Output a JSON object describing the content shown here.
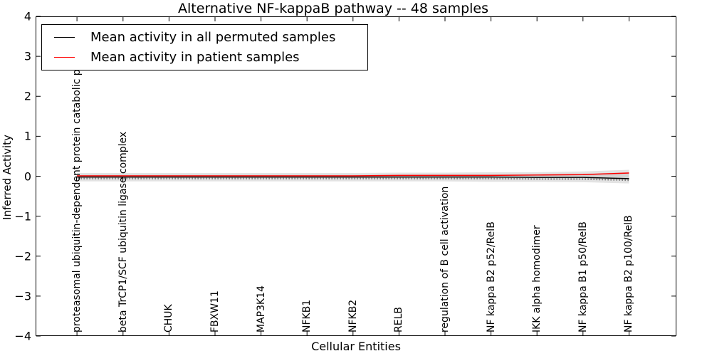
{
  "title": "Alternative NF-kappaB pathway -- 48 samples",
  "axes": {
    "xlabel": "Cellular Entities",
    "ylabel": "Inferred Activity",
    "ytick_labels": [
      "4",
      "3",
      "2",
      "1",
      "0",
      "−1",
      "−2",
      "−3",
      "−4"
    ]
  },
  "legend": {
    "items": [
      {
        "label": "Mean activity in all permuted samples",
        "color": "#000000"
      },
      {
        "label": "Mean activity in patient samples",
        "color": "#ff0000"
      }
    ]
  },
  "chart_data": {
    "type": "line",
    "title": "Alternative NF-kappaB pathway -- 48 samples",
    "xlabel": "Cellular Entities",
    "ylabel": "Inferred Activity",
    "categories": [
      "proteasomal ubiquitin-dependent protein catabolic pr",
      "beta TrCP1/SCF ubiquitin ligase complex",
      "CHUK",
      "FBXW11",
      "MAP3K14",
      "NFKB1",
      "NFKB2",
      "RELB",
      "regulation of B cell activation",
      "NF kappa B2 p52/RelB",
      "IKK alpha homodimer",
      "NF kappa B1 p50/RelB",
      "NF kappa B2 p100/RelB"
    ],
    "series": [
      {
        "name": "Mean activity in all permuted samples",
        "color": "#000000",
        "values": [
          -0.02,
          -0.02,
          -0.02,
          -0.02,
          -0.02,
          -0.02,
          -0.02,
          -0.02,
          -0.02,
          -0.02,
          -0.03,
          -0.03,
          -0.06
        ]
      },
      {
        "name": "Mean activity in patient samples",
        "color": "#ff0000",
        "values": [
          0.01,
          0.01,
          0.01,
          0.01,
          0.01,
          0.01,
          0.01,
          0.02,
          0.02,
          0.02,
          0.03,
          0.04,
          0.08
        ]
      }
    ],
    "bands": [
      {
        "name": "permuted-std-outer",
        "color": "#e3e3e3",
        "upper": [
          0.08,
          0.08,
          0.08,
          0.08,
          0.08,
          0.08,
          0.08,
          0.09,
          0.09,
          0.1,
          0.1,
          0.12,
          0.16
        ],
        "lower": [
          -0.13,
          -0.13,
          -0.13,
          -0.13,
          -0.13,
          -0.13,
          -0.13,
          -0.13,
          -0.13,
          -0.14,
          -0.14,
          -0.15,
          -0.18
        ]
      },
      {
        "name": "permuted-std-inner",
        "color": "#d2d2d2",
        "upper": [
          0.04,
          0.04,
          0.04,
          0.04,
          0.04,
          0.04,
          0.04,
          0.04,
          0.05,
          0.05,
          0.05,
          0.06,
          0.1
        ],
        "lower": [
          -0.06,
          -0.06,
          -0.06,
          -0.06,
          -0.06,
          -0.06,
          -0.06,
          -0.06,
          -0.07,
          -0.07,
          -0.07,
          -0.08,
          -0.1
        ]
      }
    ],
    "ylim": [
      -4,
      4
    ],
    "xlim": [
      -0.9,
      13.03
    ],
    "yticks": [
      4,
      3,
      2,
      1,
      0,
      -1,
      -2,
      -3,
      -4
    ],
    "grid": false,
    "legend_position": "upper left",
    "tick_direction": "in"
  }
}
